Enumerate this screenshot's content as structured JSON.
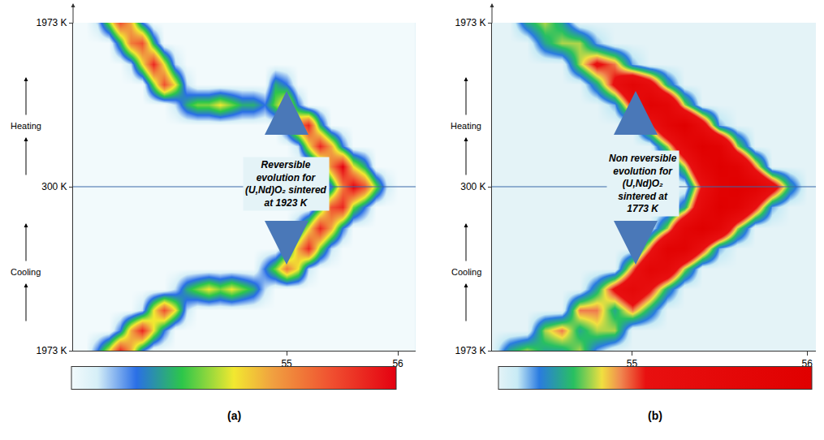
{
  "chart_data": [
    {
      "type": "heatmap",
      "panel_label": "(a)",
      "annotation": [
        "Reversible",
        "evolution for",
        "(U,Nd)O₂ sintered",
        "at 1923 K"
      ],
      "side_labels": {
        "upper": "Heating",
        "lower": "Cooling"
      },
      "x": [
        53.1,
        53.2,
        53.3,
        53.4,
        53.5,
        53.6,
        53.7,
        53.8,
        53.9,
        54.0,
        54.1,
        54.2,
        54.3,
        54.4,
        54.5,
        54.6,
        54.7,
        54.8,
        54.9,
        55.0,
        55.1,
        55.2,
        55.3,
        55.4,
        55.5,
        55.6,
        55.7,
        55.8,
        55.9,
        56.0,
        56.1
      ],
      "y": [
        0,
        1,
        2,
        3,
        4,
        5,
        6,
        7,
        8,
        9,
        10,
        11,
        12,
        13,
        14,
        15,
        16
      ],
      "z": [
        [
          0,
          0,
          2,
          5,
          9,
          6,
          2,
          0,
          0,
          0,
          0,
          0,
          0,
          0,
          0,
          0,
          0,
          0,
          0,
          0,
          0,
          0,
          0,
          0,
          0,
          0,
          0,
          0,
          0,
          0,
          0
        ],
        [
          0,
          0,
          0,
          0,
          2,
          6,
          9,
          5,
          2,
          0,
          0,
          0,
          0,
          0,
          0,
          0,
          0,
          0,
          0,
          0,
          0,
          0,
          0,
          0,
          0,
          0,
          0,
          0,
          0,
          0,
          0
        ],
        [
          0,
          0,
          0,
          0,
          0,
          0,
          1,
          5,
          8,
          5,
          1,
          0,
          0,
          0,
          0,
          0,
          0,
          0,
          0,
          0,
          0,
          0,
          0,
          0,
          0,
          0,
          0,
          0,
          0,
          0,
          0
        ],
        [
          0,
          0,
          0,
          0,
          0,
          0,
          0,
          0,
          0,
          1,
          3,
          4,
          5,
          4,
          5,
          4,
          3,
          1,
          0,
          0,
          0,
          0,
          0,
          0,
          0,
          0,
          0,
          0,
          0,
          0,
          0
        ],
        [
          0,
          0,
          0,
          0,
          0,
          0,
          0,
          0,
          0,
          0,
          0,
          0,
          0,
          0,
          0,
          0,
          0,
          2,
          4,
          7,
          5,
          1,
          0,
          0,
          0,
          0,
          0,
          0,
          0,
          0,
          0
        ],
        [
          0,
          0,
          0,
          0,
          0,
          0,
          0,
          0,
          0,
          0,
          0,
          0,
          0,
          0,
          0,
          0,
          0,
          0,
          0,
          2,
          6,
          9,
          4,
          1,
          0,
          0,
          0,
          0,
          0,
          0,
          0
        ],
        [
          0,
          0,
          0,
          0,
          0,
          0,
          0,
          0,
          0,
          0,
          0,
          0,
          0,
          0,
          0,
          0,
          0,
          0,
          0,
          0,
          2,
          5,
          9,
          6,
          2,
          0,
          0,
          0,
          0,
          0,
          0
        ],
        [
          0,
          0,
          0,
          0,
          0,
          0,
          0,
          0,
          0,
          0,
          0,
          0,
          0,
          0,
          0,
          0,
          0,
          0,
          0,
          0,
          0,
          0,
          3,
          8,
          9,
          4,
          2,
          0,
          0,
          0,
          0
        ],
        [
          0,
          0,
          0,
          0,
          0,
          0,
          0,
          0,
          0,
          0,
          0,
          0,
          0,
          0,
          0,
          0,
          0,
          0,
          0,
          0,
          0,
          0,
          0,
          2,
          7,
          10,
          8,
          4,
          1,
          0,
          0
        ],
        [
          0,
          0,
          0,
          0,
          0,
          0,
          0,
          0,
          0,
          0,
          0,
          0,
          0,
          0,
          0,
          0,
          0,
          0,
          0,
          0,
          0,
          0,
          2,
          7,
          10,
          5,
          3,
          0,
          0,
          0,
          0
        ],
        [
          0,
          0,
          0,
          0,
          0,
          0,
          0,
          0,
          0,
          0,
          0,
          0,
          0,
          0,
          0,
          0,
          0,
          0,
          0,
          0,
          1,
          5,
          9,
          6,
          2,
          0,
          0,
          0,
          0,
          0,
          0
        ],
        [
          0,
          0,
          0,
          0,
          0,
          0,
          0,
          0,
          0,
          0,
          0,
          0,
          0,
          0,
          0,
          0,
          0,
          0,
          0,
          3,
          7,
          9,
          3,
          0,
          0,
          0,
          0,
          0,
          0,
          0,
          0
        ],
        [
          0,
          0,
          0,
          0,
          0,
          0,
          0,
          0,
          0,
          1,
          3,
          4,
          4,
          5,
          4,
          3,
          3,
          2,
          4,
          6,
          2,
          0,
          0,
          0,
          0,
          0,
          0,
          0,
          0,
          0,
          0
        ],
        [
          0,
          0,
          0,
          0,
          0,
          0,
          0,
          4,
          8,
          5,
          1,
          0,
          0,
          0,
          0,
          0,
          0,
          0,
          3,
          2,
          0,
          0,
          0,
          0,
          0,
          0,
          0,
          0,
          0,
          0,
          0
        ],
        [
          0,
          0,
          0,
          0,
          0,
          1,
          5,
          9,
          5,
          1,
          0,
          0,
          0,
          0,
          0,
          0,
          0,
          0,
          0,
          0,
          0,
          0,
          0,
          0,
          0,
          0,
          0,
          0,
          0,
          0,
          0
        ],
        [
          0,
          0,
          0,
          0,
          3,
          7,
          8,
          3,
          0,
          0,
          0,
          0,
          0,
          0,
          0,
          0,
          0,
          0,
          0,
          0,
          0,
          0,
          0,
          0,
          0,
          0,
          0,
          0,
          0,
          0,
          0
        ],
        [
          0,
          0,
          1,
          4,
          8,
          6,
          2,
          0,
          0,
          0,
          0,
          0,
          0,
          0,
          0,
          0,
          0,
          0,
          0,
          0,
          0,
          0,
          0,
          0,
          0,
          0,
          0,
          0,
          0,
          0,
          0
        ]
      ],
      "zlim": [
        0,
        10
      ],
      "xlim": [
        53.08,
        56.16
      ],
      "xticks": [
        55,
        56
      ],
      "ylim": [
        0,
        16
      ],
      "yticks": [
        {
          "value": 0,
          "label": "1973 K"
        },
        {
          "value": 8,
          "label": "300 K"
        },
        {
          "value": 16,
          "label": "1973 K"
        }
      ],
      "reference_y": 8,
      "tick_labels": true
    },
    {
      "type": "heatmap",
      "panel_label": "(b)",
      "annotation": [
        "Non reversible",
        "evolution for",
        "(U,Nd)O₂",
        "sintered at",
        "1773 K"
      ],
      "side_labels": {
        "upper": "Heating",
        "lower": "Cooling"
      },
      "x": [
        54.2,
        54.3,
        54.4,
        54.5,
        54.6,
        54.7,
        54.8,
        54.9,
        55.0,
        55.1,
        55.2,
        55.3,
        55.4,
        55.5,
        55.6,
        55.7,
        55.8,
        55.9,
        56.0
      ],
      "y": [
        0,
        1,
        2,
        3,
        4,
        5,
        6,
        7,
        8,
        9,
        10,
        11,
        12,
        13,
        14,
        15,
        16
      ],
      "z": [
        [
          0,
          2,
          3,
          2,
          2,
          3,
          1,
          0,
          0,
          0,
          0,
          0,
          0,
          0,
          0,
          0,
          0,
          0,
          0
        ],
        [
          0,
          0,
          0,
          3,
          4,
          2,
          3,
          3,
          0,
          0,
          0,
          0,
          0,
          0,
          0,
          0,
          0,
          0,
          0
        ],
        [
          0,
          0,
          0,
          0,
          0,
          4,
          4,
          2,
          4,
          2,
          0,
          0,
          0,
          0,
          0,
          0,
          0,
          0,
          0
        ],
        [
          0,
          0,
          0,
          0,
          0,
          0,
          2,
          5,
          7,
          5,
          2,
          0,
          0,
          0,
          0,
          0,
          0,
          0,
          0
        ],
        [
          0,
          0,
          0,
          0,
          0,
          0,
          0,
          0,
          4,
          8,
          7,
          3,
          0,
          0,
          0,
          0,
          0,
          0,
          0
        ],
        [
          0,
          0,
          0,
          0,
          0,
          0,
          0,
          0,
          0,
          4,
          9,
          9,
          5,
          1,
          0,
          0,
          0,
          0,
          0
        ],
        [
          0,
          0,
          0,
          0,
          0,
          0,
          0,
          0,
          0,
          0,
          3,
          8,
          10,
          8,
          3,
          0,
          0,
          0,
          0
        ],
        [
          0,
          0,
          0,
          0,
          0,
          0,
          0,
          0,
          0,
          0,
          0,
          2,
          7,
          10,
          9,
          5,
          1,
          0,
          0
        ],
        [
          0,
          0,
          0,
          0,
          0,
          0,
          0,
          0,
          0,
          0,
          0,
          0,
          5,
          9,
          10,
          9,
          6,
          2,
          0
        ],
        [
          0,
          0,
          0,
          0,
          0,
          0,
          0,
          0,
          0,
          0,
          0,
          3,
          8,
          10,
          9,
          4,
          0,
          0,
          0
        ],
        [
          0,
          0,
          0,
          0,
          0,
          0,
          0,
          0,
          0,
          0,
          3,
          7,
          10,
          9,
          3,
          0,
          0,
          0,
          0
        ],
        [
          0,
          0,
          0,
          0,
          0,
          0,
          0,
          0,
          0,
          4,
          8,
          10,
          6,
          1,
          0,
          0,
          0,
          0,
          0
        ],
        [
          0,
          0,
          0,
          0,
          0,
          0,
          0,
          1,
          5,
          9,
          8,
          3,
          0,
          0,
          0,
          0,
          0,
          0,
          0
        ],
        [
          0,
          0,
          0,
          0,
          0,
          0,
          2,
          5,
          8,
          6,
          2,
          0,
          0,
          0,
          0,
          0,
          0,
          0,
          0
        ],
        [
          0,
          0,
          0,
          0,
          0,
          3,
          5,
          4,
          1,
          0,
          0,
          0,
          0,
          0,
          0,
          0,
          0,
          0,
          0
        ],
        [
          0,
          0,
          0,
          2,
          3,
          3,
          1,
          0,
          0,
          0,
          0,
          0,
          0,
          0,
          0,
          0,
          0,
          0,
          0
        ],
        [
          0,
          0,
          2,
          3,
          2,
          0,
          0,
          0,
          0,
          0,
          0,
          0,
          0,
          0,
          0,
          0,
          0,
          0,
          0
        ]
      ],
      "zlim": [
        0,
        10
      ],
      "xlim": [
        54.2,
        56.05
      ],
      "xticks": [
        55,
        56
      ],
      "ylim": [
        0,
        16
      ],
      "yticks": [
        {
          "value": 0,
          "label": "1973 K"
        },
        {
          "value": 8,
          "label": "300 K"
        },
        {
          "value": 16,
          "label": "1973 K"
        }
      ],
      "reference_y": 8,
      "tick_labels": true
    }
  ]
}
